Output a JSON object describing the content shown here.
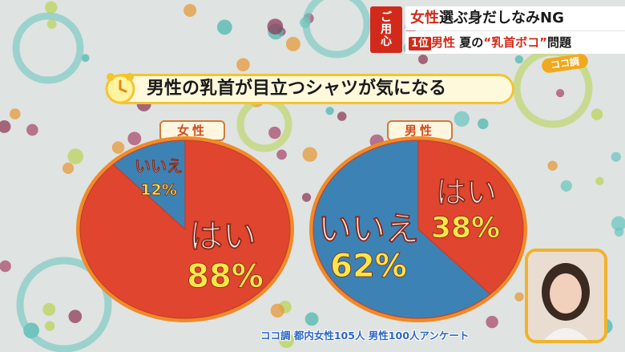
{
  "caption": {
    "badge": [
      "ご",
      "用",
      "心"
    ],
    "headline1_red": "女性",
    "headline1_rest": "選ぶ身だしなみNG",
    "headline2_rank": "1位",
    "headline2_red1": "男性",
    "headline2_mid": " 夏の",
    "headline2_red2": "“乳首ボコ”",
    "headline2_end": "問題",
    "logo": "ココ調"
  },
  "question": "男性の乳首が目立つシャツが気になる",
  "source": "ココ調 都内女性105人 男性100人アンケート",
  "colors": {
    "yes": "#e0452f",
    "no": "#3d82b5",
    "rim": "#f08a2a"
  },
  "chart_data": [
    {
      "type": "pie",
      "title": "女性",
      "slices": [
        {
          "label": "はい",
          "value": 88
        },
        {
          "label": "いいえ",
          "value": 12
        }
      ],
      "unit": "%"
    },
    {
      "type": "pie",
      "title": "男性",
      "slices": [
        {
          "label": "はい",
          "value": 38
        },
        {
          "label": "いいえ",
          "value": 62
        }
      ],
      "unit": "%"
    }
  ]
}
